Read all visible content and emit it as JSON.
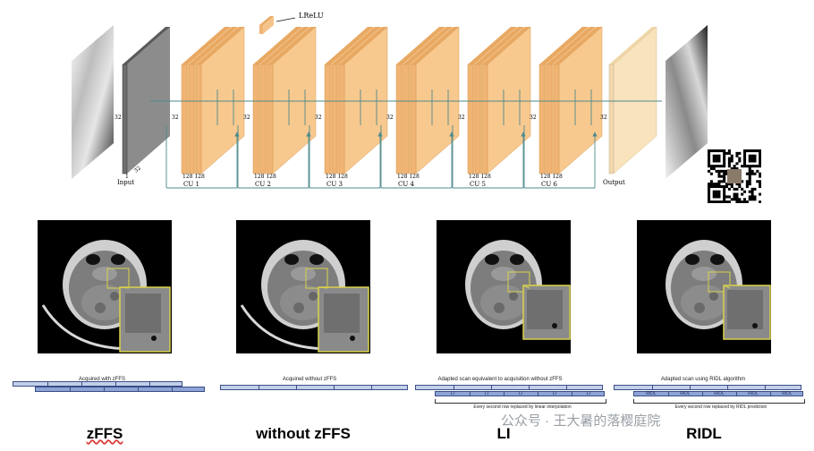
{
  "network": {
    "activation_label": "LReLU",
    "input_label": "Input",
    "output_label": "Output",
    "dims": {
      "height": "32",
      "width": "32",
      "channels_one": "1",
      "channels_128": "128"
    },
    "blocks": [
      "CU 1",
      "CU 2",
      "CU 3",
      "CU 4",
      "CU 5",
      "CU 6"
    ]
  },
  "panels": [
    {
      "method": "zFFS",
      "caption": "Acquired with zFFS"
    },
    {
      "method": "without zFFS",
      "caption": "Acquired without zFFS"
    },
    {
      "method": "LI",
      "caption": "Adapted scan equivalent to acquisition without zFFS",
      "row_label": "LI",
      "note": "Every second row replaced by linear interpolation"
    },
    {
      "method": "RIDL",
      "caption": "Adapted scan using RIDL algorithm",
      "row_label": "RIDL",
      "note": "Every second row replaced by RIDL prediction"
    }
  ],
  "watermark": "公众号 · 王大暑的落樱庭院",
  "colors": {
    "block": "#f5c48a",
    "block_dark": "#e9a962",
    "output": "#f8e3bd",
    "input": "#7f7f7f",
    "arrow": "#4f8a8b",
    "scan_fill": "#8ea4d6",
    "scan_light": "#c3cfea",
    "zoom_border": "#d9d24a"
  }
}
